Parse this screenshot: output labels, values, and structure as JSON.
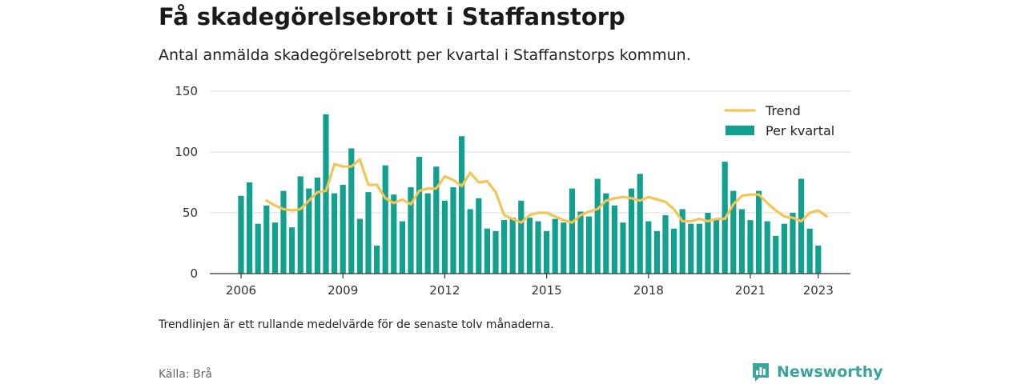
{
  "title": "Få skadegörelsebrott i Staffanstorp",
  "subtitle": "Antal anmälda skadegörelsebrott per kvartal i Staffanstorps kommun.",
  "note": "Trendlinjen är ett rullande medelvärde för de senaste tolv månaderna.",
  "source": "Källa: Brå",
  "brand": {
    "name": "Newsworthy",
    "icon": "bar-chart-badge-icon",
    "color": "#3aa59a"
  },
  "chart_data": {
    "type": "bar",
    "x_start": "2006Q1",
    "x_ticks": [
      "2006",
      "2009",
      "2012",
      "2015",
      "2018",
      "2021",
      "2023"
    ],
    "y_ticks": [
      "0",
      "50",
      "100",
      "150"
    ],
    "ylim": [
      0,
      150
    ],
    "grid": true,
    "legend_position": "top-right",
    "series": [
      {
        "name": "Per kvartal",
        "kind": "bar",
        "color": "#12a08f",
        "values": [
          64,
          75,
          41,
          56,
          42,
          68,
          38,
          80,
          70,
          79,
          131,
          66,
          73,
          103,
          45,
          67,
          23,
          89,
          65,
          43,
          71,
          96,
          66,
          88,
          60,
          71,
          113,
          53,
          62,
          37,
          35,
          44,
          46,
          60,
          46,
          43,
          35,
          45,
          42,
          70,
          51,
          47,
          78,
          66,
          56,
          42,
          70,
          82,
          43,
          35,
          48,
          37,
          53,
          41,
          41,
          50,
          45,
          92,
          68,
          53,
          44,
          68,
          43,
          31,
          41,
          50,
          78,
          37,
          23
        ]
      },
      {
        "name": "Trend",
        "kind": "line",
        "color": "#f5c452",
        "start_index": 3,
        "values": [
          60,
          56,
          53,
          52,
          53,
          60,
          67,
          68,
          90,
          88,
          88,
          94,
          73,
          73,
          62,
          58,
          61,
          57,
          68,
          70,
          70,
          80,
          77,
          72,
          83,
          75,
          76,
          67,
          48,
          45,
          42,
          48,
          50,
          50,
          47,
          44,
          42,
          48,
          51,
          53,
          60,
          62,
          63,
          62,
          60,
          63,
          61,
          59,
          53,
          43,
          43,
          45,
          43,
          45,
          45,
          57,
          64,
          65,
          65,
          58,
          52,
          47,
          46,
          43,
          50,
          52,
          47
        ]
      }
    ]
  }
}
